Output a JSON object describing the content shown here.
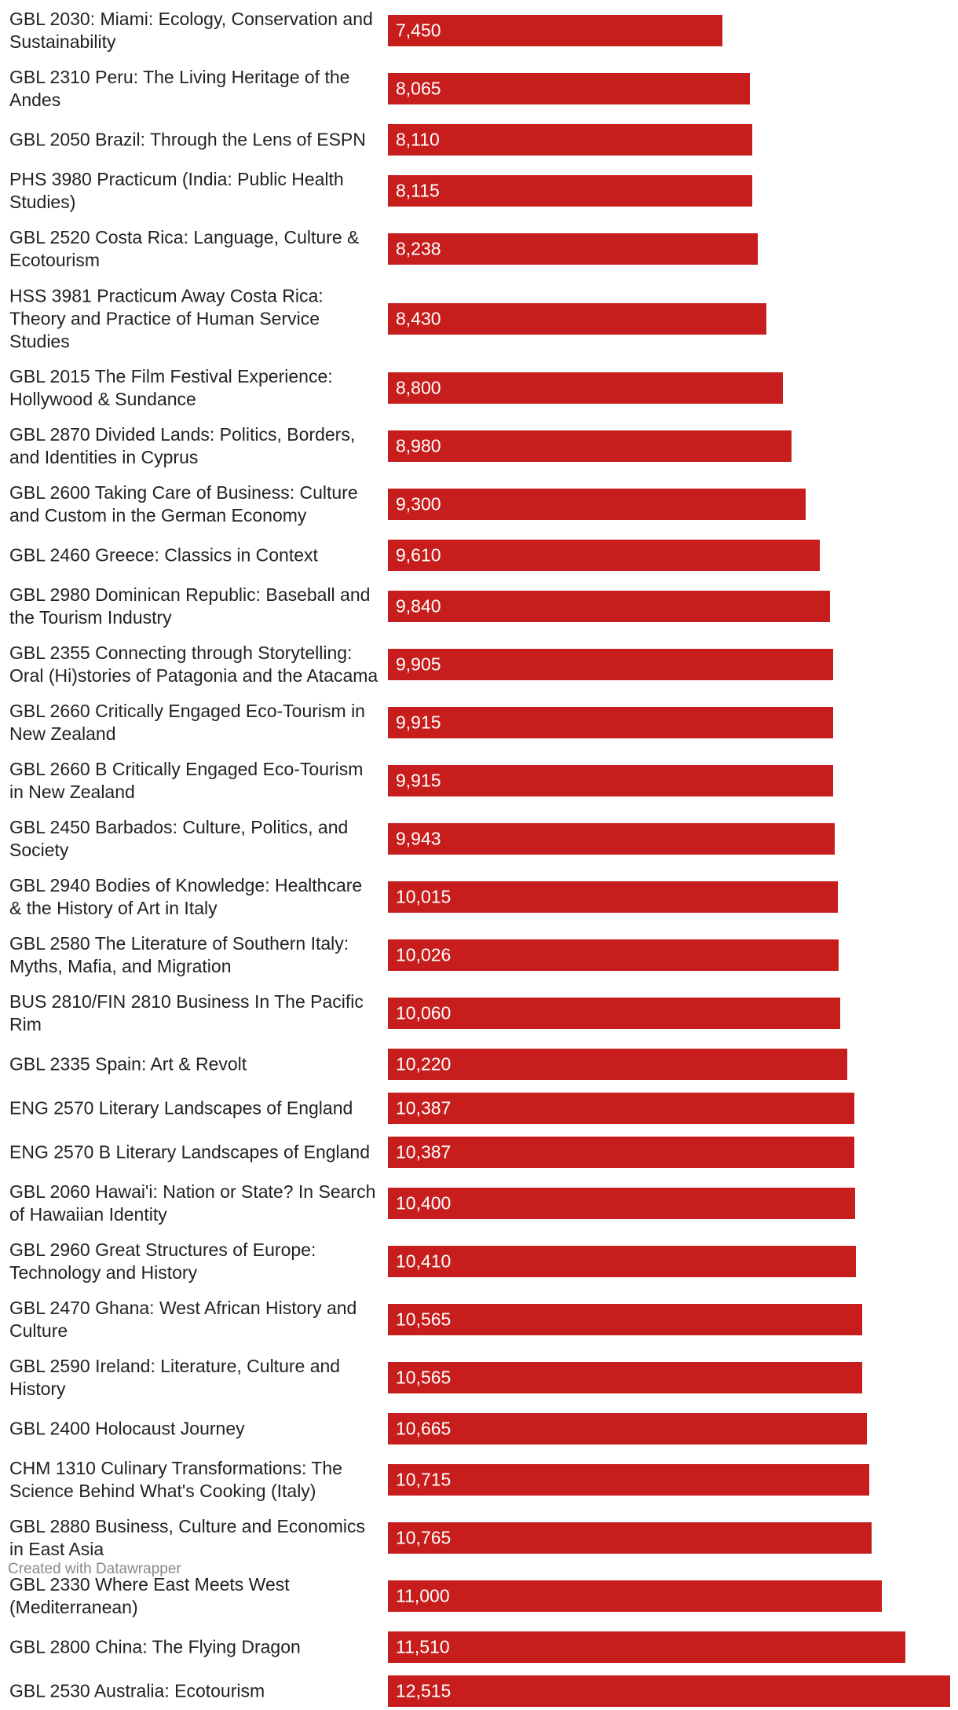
{
  "chart_data": {
    "type": "bar",
    "orientation": "horizontal",
    "bar_color": "#c71e1d",
    "value_label_color": "#ffffff",
    "categories": [
      "GBL 2030: Miami: Ecology, Conservation and Sustainability",
      "GBL 2310 Peru: The Living Heritage of the Andes",
      "GBL 2050 Brazil: Through the Lens of ESPN",
      "PHS 3980 Practicum (India: Public Health Studies)",
      "GBL 2520 Costa Rica: Language, Culture & Ecotourism",
      "HSS 3981 Practicum Away Costa Rica: Theory and Practice of Human Service Studies",
      "GBL 2015 The Film Festival Experience: Hollywood & Sundance",
      "GBL 2870 Divided Lands: Politics, Borders, and Identities in Cyprus",
      "GBL 2600 Taking Care of Business: Culture and Custom in the German Economy",
      "GBL 2460 Greece: Classics in Context",
      "GBL 2980 Dominican Republic: Baseball and the Tourism Industry",
      "GBL 2355 Connecting through Storytelling: Oral (Hi)stories of Patagonia and the Atacama",
      "GBL 2660 Critically Engaged Eco-Tourism in New Zealand",
      "GBL 2660 B Critically Engaged Eco-Tourism in New Zealand",
      "GBL 2450 Barbados: Culture, Politics, and Society",
      "GBL 2940 Bodies of Knowledge: Healthcare & the History of Art in Italy",
      "GBL 2580 The Literature of Southern Italy: Myths, Mafia, and Migration",
      "BUS 2810/FIN 2810 Business In The Pacific Rim",
      "GBL 2335 Spain: Art & Revolt",
      "ENG 2570 Literary Landscapes of England",
      "ENG 2570 B Literary Landscapes of England",
      "GBL 2060 Hawai'i: Nation or State? In Search of Hawaiian Identity",
      "GBL 2960 Great Structures of Europe: Technology and History",
      "GBL 2470 Ghana: West African History and Culture",
      "GBL 2590 Ireland: Literature, Culture and History",
      "GBL 2400 Holocaust Journey",
      "CHM 1310 Culinary Transformations: The Science Behind What's Cooking (Italy)",
      "GBL 2880 Business, Culture and Economics in East Asia",
      "GBL 2330 Where East Meets West (Mediterranean)",
      "GBL 2800 China: The Flying Dragon",
      "GBL 2530 Australia: Ecotourism"
    ],
    "values": [
      7450,
      8065,
      8110,
      8115,
      8238,
      8430,
      8800,
      8980,
      9300,
      9610,
      9840,
      9905,
      9915,
      9915,
      9943,
      10015,
      10026,
      10060,
      10220,
      10387,
      10387,
      10400,
      10410,
      10565,
      10565,
      10665,
      10715,
      10765,
      11000,
      11510,
      12515
    ],
    "value_labels": [
      "7,450",
      "8,065",
      "8,110",
      "8,115",
      "8,238",
      "8,430",
      "8,800",
      "8,980",
      "9,300",
      "9,610",
      "9,840",
      "9,905",
      "9,915",
      "9,915",
      "9,943",
      "10,015",
      "10,026",
      "10,060",
      "10,220",
      "10,387",
      "10,387",
      "10,400",
      "10,410",
      "10,565",
      "10,565",
      "10,665",
      "10,715",
      "10,765",
      "11,000",
      "11,510",
      "12,515"
    ],
    "xlim": [
      0,
      12515
    ],
    "title": "",
    "xlabel": "",
    "ylabel": ""
  },
  "footer": {
    "credit": "Created with Datawrapper"
  }
}
